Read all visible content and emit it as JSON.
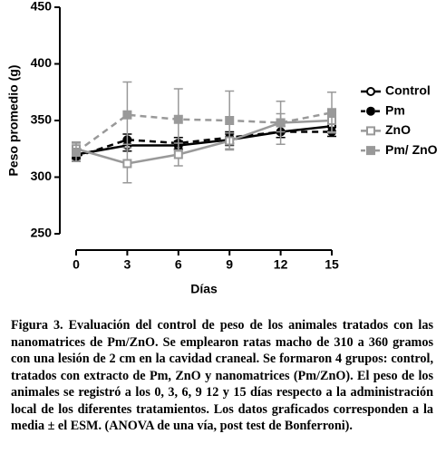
{
  "chart_data": {
    "type": "line",
    "y_label": "Peso promedio (g)",
    "x_label": "Días",
    "x": [
      0,
      3,
      6,
      9,
      12,
      15
    ],
    "xlim": [
      0,
      15
    ],
    "xticks": [
      0,
      3,
      6,
      9,
      12,
      15
    ],
    "ylim": [
      250,
      450
    ],
    "yticks": [
      250,
      300,
      350,
      400,
      450
    ],
    "series": [
      {
        "name": "Control",
        "color": "#000000",
        "dashed": false,
        "marker": "circle",
        "filled": false,
        "values": [
          320,
          328,
          328,
          333,
          340,
          345
        ],
        "errors": [
          4,
          5,
          4,
          5,
          5,
          5
        ]
      },
      {
        "name": "Pm",
        "color": "#000000",
        "dashed": true,
        "marker": "circle",
        "filled": true,
        "values": [
          318,
          333,
          330,
          335,
          340,
          340
        ],
        "errors": [
          4,
          5,
          5,
          5,
          5,
          4
        ]
      },
      {
        "name": "ZnO",
        "color": "#999999",
        "dashed": false,
        "marker": "square",
        "filled": false,
        "values": [
          325,
          312,
          320,
          332,
          348,
          350
        ],
        "errors": [
          6,
          17,
          10,
          7,
          8,
          10
        ]
      },
      {
        "name": "Pm/ ZnO",
        "color": "#999999",
        "dashed": true,
        "marker": "square",
        "filled": true,
        "values": [
          322,
          355,
          351,
          350,
          348,
          357
        ],
        "errors": [
          8,
          29,
          27,
          26,
          19,
          18
        ]
      }
    ]
  },
  "caption": "Figura 3. Evaluación del control de peso de los animales tratados con las nanomatrices de Pm/ZnO. Se emplearon ratas macho de 310 a 360 gramos con una lesión de 2 cm en la cavidad craneal. Se formaron 4 grupos: control, tratados con extracto de Pm, ZnO y nanomatrices (Pm/ZnO). El peso de los animales se registró a los 0, 3, 6, 9 12 y 15 días respecto a la administración local de los diferentes tratamientos. Los datos graficados corresponden a la media ± el ESM. (ANOVA de una vía, post test de Bonferroni)."
}
